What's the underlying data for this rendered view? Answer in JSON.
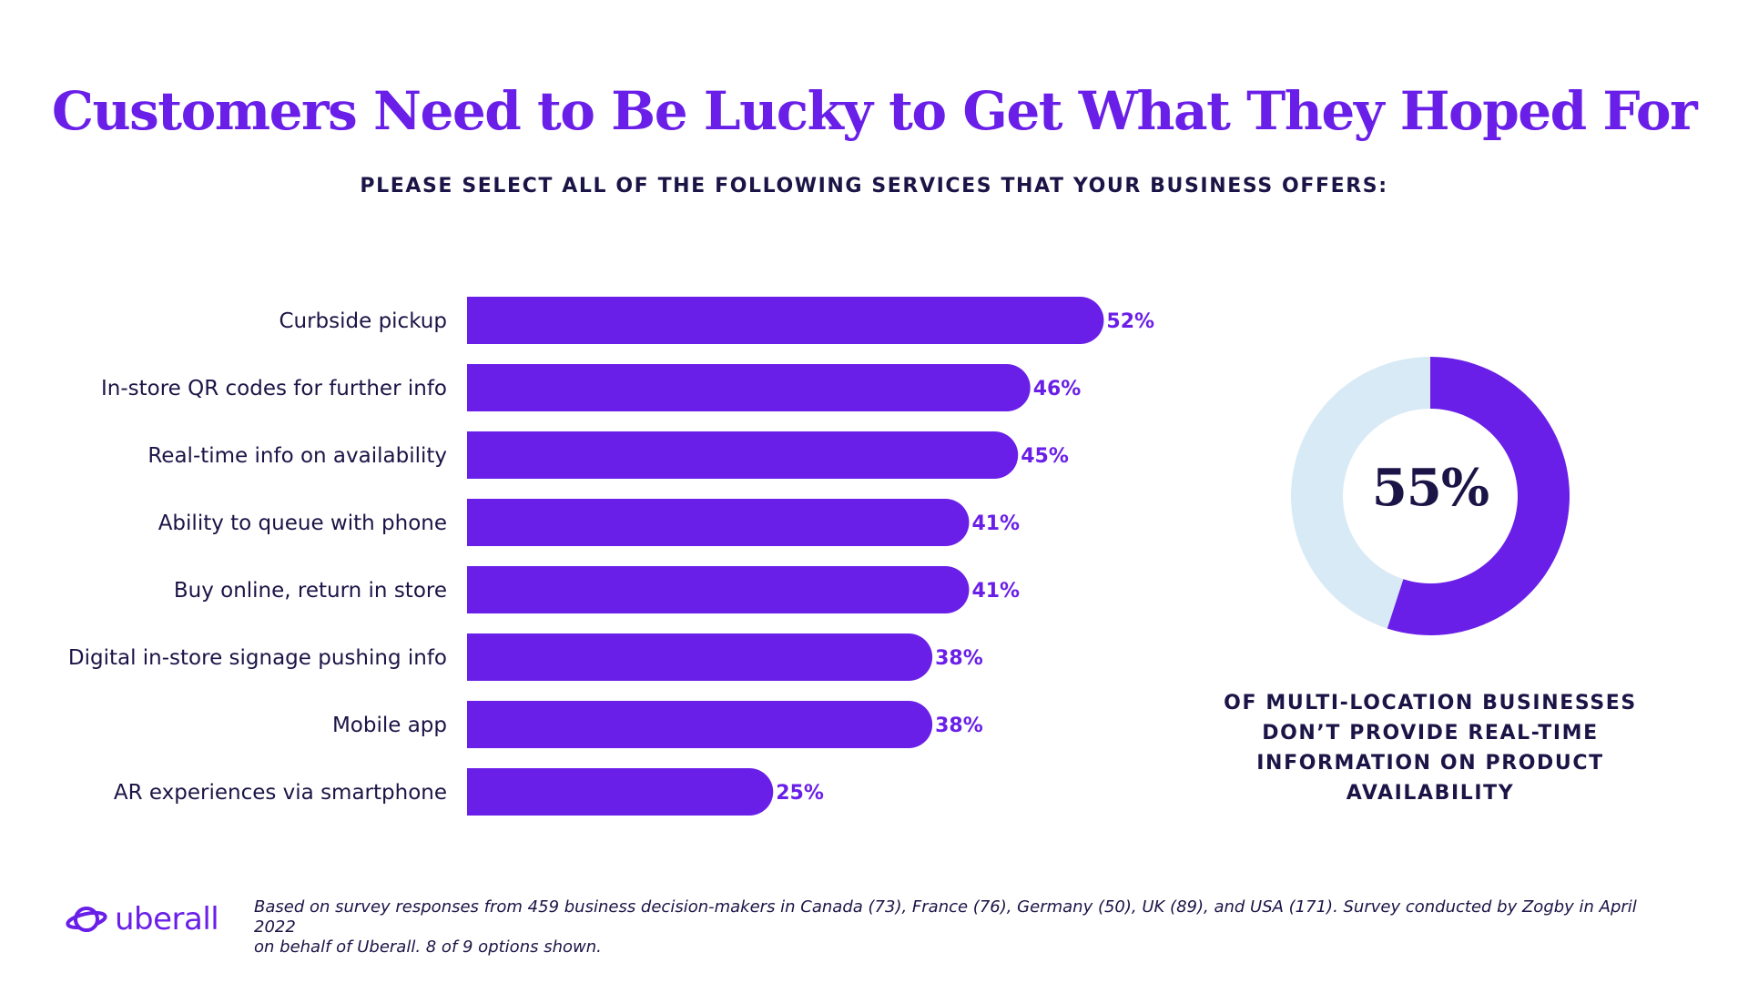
{
  "title": "Customers Need to Be Lucky to Get What They Hoped For",
  "subtitle": "PLEASE SELECT ALL OF THE FOLLOWING SERVICES THAT YOUR BUSINESS OFFERS:",
  "colors": {
    "accent": "#6a1fe8",
    "text": "#1b1446",
    "donut_remainder": "#d8eaf5"
  },
  "chart_data": [
    {
      "type": "bar",
      "orientation": "horizontal",
      "categories": [
        "Curbside pickup",
        "In-store QR codes for further info",
        "Real-time info on availability",
        "Ability to queue with phone",
        "Buy online, return in store",
        "Digital in-store signage pushing info",
        "Mobile app",
        "AR experiences via smartphone"
      ],
      "values": [
        52,
        46,
        45,
        41,
        41,
        38,
        38,
        25
      ],
      "value_labels": [
        "52%",
        "46%",
        "45%",
        "41%",
        "41%",
        "38%",
        "38%",
        "25%"
      ],
      "grid": false
    },
    {
      "type": "pie",
      "style": "donut",
      "values": [
        55,
        45
      ],
      "center_label": "55%",
      "caption": "OF MULTI-LOCATION BUSINESSES DON’T PROVIDE REAL-TIME INFORMATION ON PRODUCT AVAILABILITY"
    }
  ],
  "donut": {
    "center_label": "55%",
    "caption_lines": [
      "OF MULTI-LOCATION BUSINESSES",
      "DON’T PROVIDE REAL-TIME",
      "INFORMATION ON PRODUCT",
      "AVAILABILITY"
    ]
  },
  "footer": {
    "logo_text": "uberall",
    "logo_icon": "planet-icon",
    "note_line1": "Based on survey responses from 459 business decision-makers in Canada (73), France (76), Germany (50), UK (89), and USA (171). Survey conducted by Zogby in April 2022",
    "note_line2": "on behalf of Uberall. 8 of 9 options shown."
  }
}
